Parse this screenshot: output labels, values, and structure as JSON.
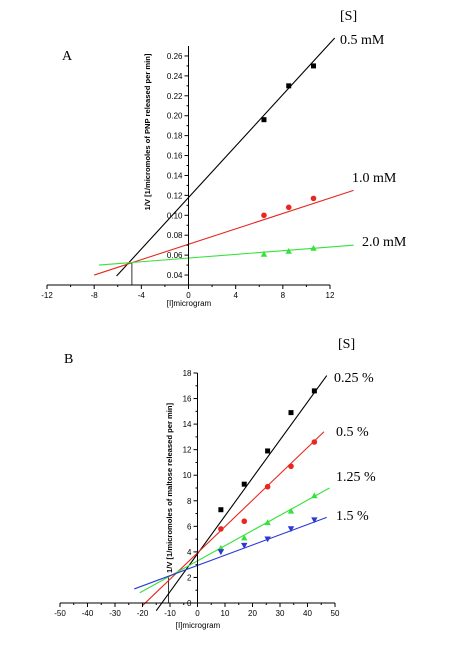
{
  "colors": {
    "black": "#000000",
    "red": "#e8271f",
    "green": "#35e23a",
    "blue": "#2b37d6"
  },
  "chart_data": [
    {
      "type": "line",
      "panel_label": "A",
      "legend_title": "[S]",
      "xlabel": "[I]microgram",
      "ylabel": "1/V [1/micromoles of PNP released per min]",
      "xlim": [
        -12,
        12
      ],
      "ylim": [
        0.03,
        0.27
      ],
      "xticks": [
        -12,
        -8,
        -4,
        0,
        4,
        8,
        12
      ],
      "yticks": [
        0.04,
        0.06,
        0.08,
        0.1,
        0.12,
        0.14,
        0.16,
        0.18,
        0.2,
        0.22,
        0.24,
        0.26
      ],
      "ytick_labels": [
        "0.04",
        "0.06",
        "0.08",
        "0.10",
        "0.12",
        "0.14",
        "0.16",
        "0.18",
        "0.20",
        "0.22",
        "0.24",
        "0.26"
      ],
      "grid": false,
      "intersection": {
        "x": -4.8,
        "y": 0.053
      },
      "series": [
        {
          "name": "0.5 mM",
          "color": "#000000",
          "marker": "square",
          "x": [
            6.4,
            8.5,
            10.6
          ],
          "y": [
            0.196,
            0.23,
            0.25
          ],
          "fit_x": [
            -6.1,
            12.4
          ],
          "fit_y": [
            0.039,
            0.278
          ]
        },
        {
          "name": "1.0 mM",
          "color": "#e8271f",
          "marker": "circle",
          "x": [
            6.4,
            8.5,
            10.6
          ],
          "y": [
            0.1,
            0.108,
            0.117
          ],
          "fit_x": [
            -8.0,
            14.0
          ],
          "fit_y": [
            0.04,
            0.125
          ]
        },
        {
          "name": "2.0 mM",
          "color": "#35e23a",
          "marker": "triangle-up",
          "x": [
            6.4,
            8.5,
            10.6
          ],
          "y": [
            0.061,
            0.064,
            0.067
          ],
          "fit_x": [
            -7.6,
            14.0
          ],
          "fit_y": [
            0.05,
            0.07
          ]
        }
      ]
    },
    {
      "type": "line",
      "panel_label": "B",
      "legend_title": "[S]",
      "xlabel": "[I]microgram",
      "ylabel": "1/V [1/micromoles of maltose released per min]",
      "xlim": [
        -50,
        50
      ],
      "ylim": [
        0,
        18
      ],
      "xticks": [
        -50,
        -40,
        -30,
        -20,
        -10,
        0,
        10,
        20,
        30,
        40,
        50
      ],
      "yticks": [
        0,
        2,
        4,
        6,
        8,
        10,
        12,
        14,
        16,
        18
      ],
      "ytick_labels": [
        "0",
        "2",
        "4",
        "6",
        "8",
        "10",
        "12",
        "14",
        "16",
        "18"
      ],
      "grid": false,
      "intersection": {
        "x": -10.5,
        "y": 2.0
      },
      "series": [
        {
          "name": "0.25 %",
          "color": "#000000",
          "marker": "square",
          "x": [
            8.5,
            17,
            25.5,
            34,
            42.5
          ],
          "y": [
            7.3,
            9.3,
            11.9,
            14.9,
            16.6
          ],
          "fit_x": [
            -15,
            47
          ],
          "fit_y": [
            -0.6,
            17.8
          ]
        },
        {
          "name": "0.5 %",
          "color": "#e8271f",
          "marker": "circle",
          "x": [
            8.5,
            17,
            25.5,
            34,
            42.5
          ],
          "y": [
            5.8,
            6.4,
            9.1,
            10.7,
            12.6
          ],
          "fit_x": [
            -20,
            46
          ],
          "fit_y": [
            -0.2,
            13.4
          ]
        },
        {
          "name": "1.25 %",
          "color": "#35e23a",
          "marker": "triangle-up",
          "x": [
            8.5,
            17,
            25.5,
            34,
            42.5
          ],
          "y": [
            4.3,
            5.1,
            6.3,
            7.2,
            8.4
          ],
          "fit_x": [
            -21,
            48
          ],
          "fit_y": [
            0.8,
            9.0
          ]
        },
        {
          "name": "1.5 %",
          "color": "#2b37d6",
          "marker": "triangle-down",
          "x": [
            8.5,
            17,
            25.5,
            34,
            42.5
          ],
          "y": [
            4.0,
            4.5,
            5.0,
            5.8,
            6.5
          ],
          "fit_x": [
            -23,
            47
          ],
          "fit_y": [
            1.1,
            6.7
          ]
        }
      ]
    }
  ]
}
